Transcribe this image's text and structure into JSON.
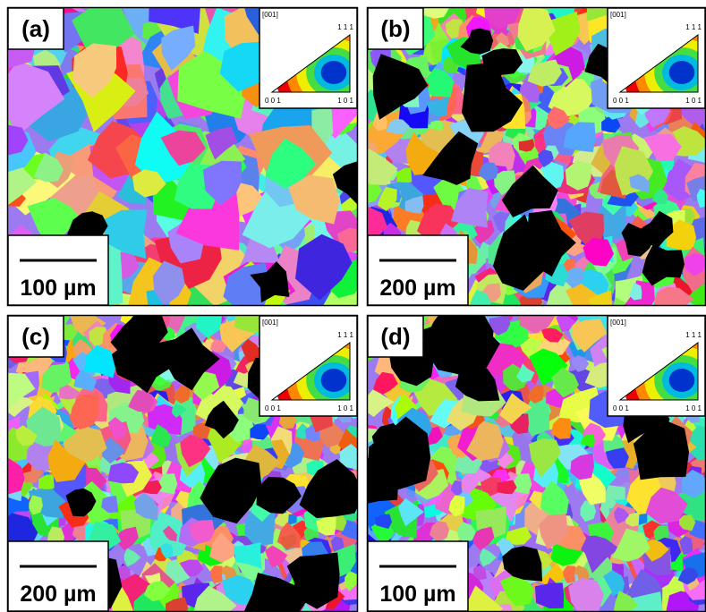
{
  "panels": [
    {
      "label": "(a)",
      "scale_bar": "100 µm",
      "ipf": {
        "title": "[001]",
        "top": "1 1 1",
        "left": "0 0 1",
        "right": "1 0 1"
      }
    },
    {
      "label": "(b)",
      "scale_bar": "200 µm",
      "ipf": {
        "title": "[001]",
        "top": "1 1 1",
        "left": "0 0 1",
        "right": "1 0 1"
      }
    },
    {
      "label": "(c)",
      "scale_bar": "200 µm",
      "ipf": {
        "title": "[001]",
        "top": "1 1 1",
        "left": "0 0 1",
        "right": "1 0 1"
      }
    },
    {
      "label": "(d)",
      "scale_bar": "100 µm",
      "ipf": {
        "title": "[001]",
        "top": "1 1 1",
        "left": "0 0 1",
        "right": "1 0 1"
      }
    }
  ]
}
